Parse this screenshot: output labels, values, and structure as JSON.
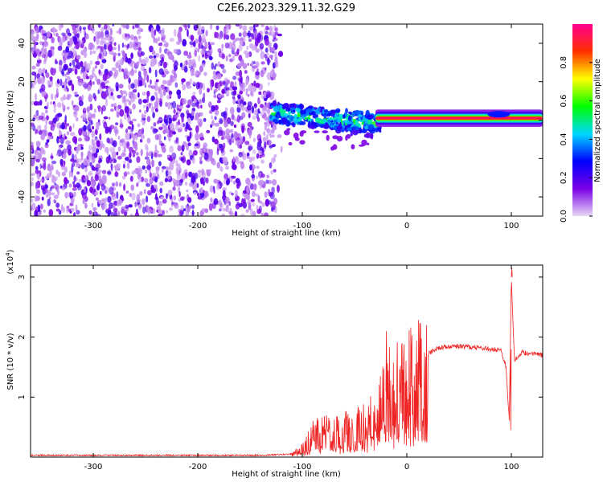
{
  "title": "C2E6.2023.329.11.32.G29",
  "chart_data": [
    {
      "type": "heatmap",
      "xlabel": "Height of straight line (km)",
      "ylabel": "Frequency (Hz)",
      "xlim": [
        -360,
        130
      ],
      "ylim": [
        -50,
        50
      ],
      "xticks": [
        -300,
        -200,
        -100,
        0,
        100
      ],
      "yticks": [
        -40,
        -20,
        0,
        20,
        40
      ],
      "colorbar": {
        "label": "Normalized spectral amplitude",
        "range": [
          0,
          1
        ],
        "ticks": [
          0.0,
          0.2,
          0.4,
          0.6,
          0.8
        ],
        "tick_labels": [
          "0.0",
          "0.2",
          "0.4",
          "0.6",
          "0.8"
        ],
        "colors": [
          "#e8d8f5",
          "#7b00e6",
          "#0000ff",
          "#00d8ff",
          "#00ff00",
          "#ffff00",
          "#ff3000",
          "#ff0090"
        ]
      },
      "regions": [
        {
          "name": "noise",
          "x_range": [
            -360,
            -125
          ],
          "y_range": [
            -50,
            50
          ],
          "amplitude": 0.1
        },
        {
          "name": "signal_onset",
          "x_range": [
            -130,
            -25
          ],
          "frequency_hz": [
            4,
            -2
          ],
          "amplitude": 0.4
        },
        {
          "name": "tone",
          "x_range": [
            -20,
            130
          ],
          "frequency_hz": 1,
          "amplitude": 0.85
        }
      ],
      "grid": false
    },
    {
      "type": "line",
      "xlabel": "Height of straight line (km)",
      "ylabel": "SNR (10 * v/v)",
      "y_scale_label": "(x10",
      "y_scale_exponent": "4",
      "y_scale_suffix": ")",
      "xlim": [
        -360,
        130
      ],
      "ylim": [
        0,
        3.2
      ],
      "xticks": [
        -300,
        -200,
        -100,
        0,
        100
      ],
      "yticks": [
        1,
        2,
        3
      ],
      "color": "#ee2222",
      "grid": false,
      "series": [
        {
          "points": [
            [
              -360,
              0.03
            ],
            [
              -300,
              0.03
            ],
            [
              -200,
              0.03
            ],
            [
              -140,
              0.03
            ],
            [
              -110,
              0.05
            ],
            [
              -100,
              0.15
            ],
            [
              -90,
              0.4
            ],
            [
              -80,
              0.45
            ],
            [
              -70,
              0.45
            ],
            [
              -60,
              0.5
            ],
            [
              -50,
              0.5
            ],
            [
              -40,
              0.6
            ],
            [
              -30,
              0.75
            ],
            [
              -25,
              0.95
            ],
            [
              -20,
              1.1
            ],
            [
              -15,
              1.3
            ],
            [
              -10,
              1.4
            ],
            [
              -5,
              1.45
            ],
            [
              0,
              1.5
            ],
            [
              5,
              1.5
            ],
            [
              10,
              1.55
            ],
            [
              15,
              1.62
            ],
            [
              20,
              1.72
            ],
            [
              30,
              1.82
            ],
            [
              40,
              1.85
            ],
            [
              60,
              1.84
            ],
            [
              80,
              1.8
            ],
            [
              90,
              1.78
            ],
            [
              95,
              1.5
            ],
            [
              98,
              0.6
            ],
            [
              100,
              3.0
            ],
            [
              103,
              1.6
            ],
            [
              110,
              1.75
            ],
            [
              120,
              1.72
            ],
            [
              130,
              1.7
            ]
          ],
          "spikes": [
            {
              "x": -20,
              "y": 2.1
            },
            {
              "x": 100,
              "y": 3.15
            },
            {
              "x": 99,
              "y": 0.45
            }
          ]
        }
      ]
    }
  ]
}
